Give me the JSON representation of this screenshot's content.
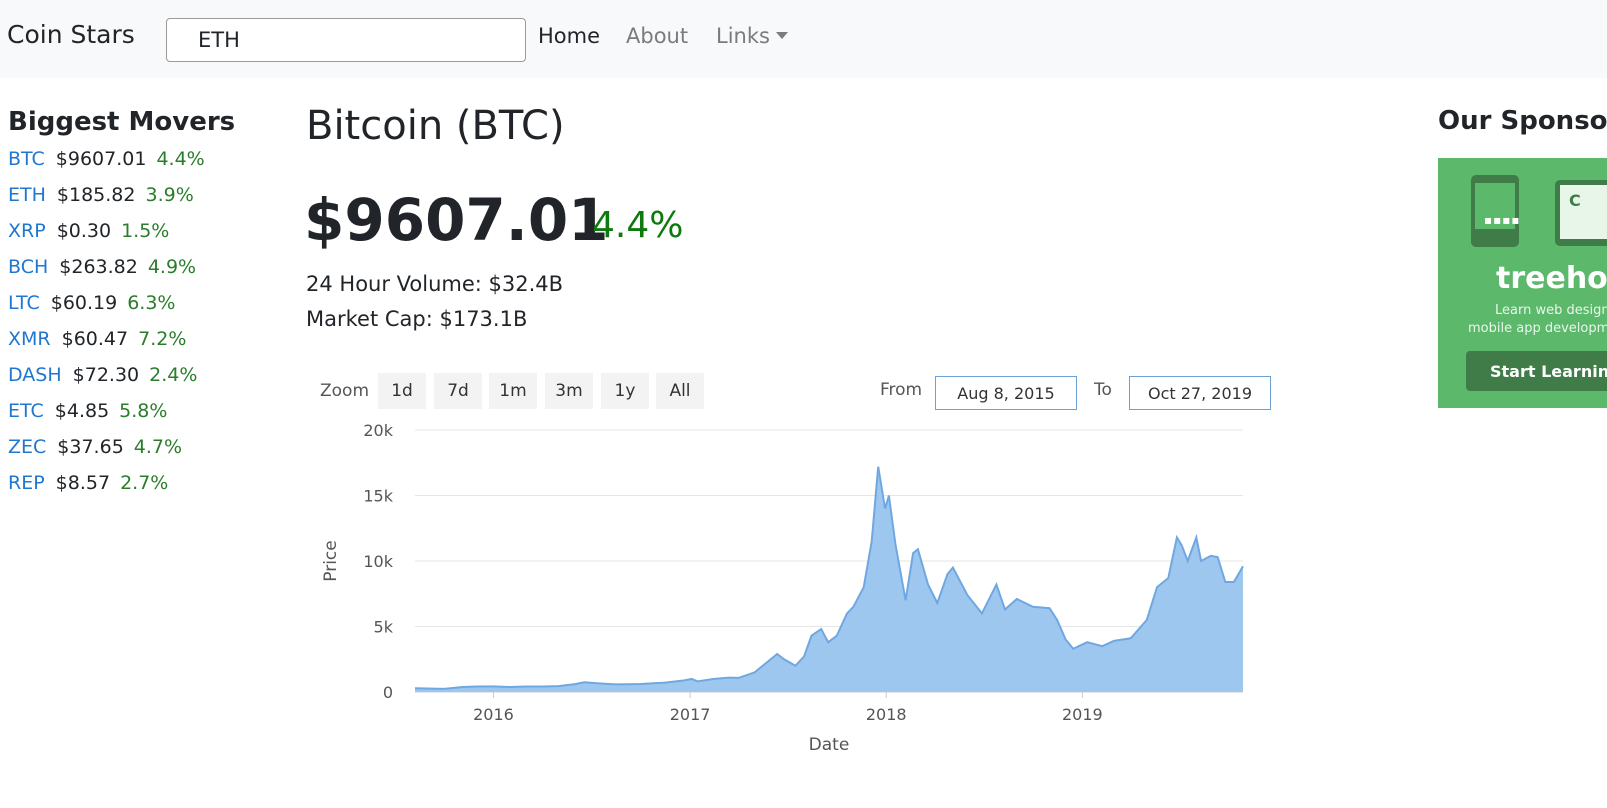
{
  "navbar": {
    "brand": "Coin Stars",
    "search_value": "ETH",
    "links": [
      "Home",
      "About",
      "Links"
    ]
  },
  "movers": {
    "title": "Biggest Movers",
    "items": [
      {
        "symbol": "BTC",
        "price": "$9607.01",
        "change": "4.4%"
      },
      {
        "symbol": "ETH",
        "price": "$185.82",
        "change": "3.9%"
      },
      {
        "symbol": "XRP",
        "price": "$0.30",
        "change": "1.5%"
      },
      {
        "symbol": "BCH",
        "price": "$263.82",
        "change": "4.9%"
      },
      {
        "symbol": "LTC",
        "price": "$60.19",
        "change": "6.3%"
      },
      {
        "symbol": "XMR",
        "price": "$60.47",
        "change": "7.2%"
      },
      {
        "symbol": "DASH",
        "price": "$72.30",
        "change": "2.4%"
      },
      {
        "symbol": "ETC",
        "price": "$4.85",
        "change": "5.8%"
      },
      {
        "symbol": "ZEC",
        "price": "$37.65",
        "change": "4.7%"
      },
      {
        "symbol": "REP",
        "price": "$8.57",
        "change": "2.7%"
      }
    ]
  },
  "coin": {
    "title": "Bitcoin (BTC)",
    "price": "$9607.01",
    "change": "4.4%",
    "volume": "24 Hour Volume: $32.4B",
    "market_cap": "Market Cap: $173.1B"
  },
  "chart_controls": {
    "zoom_label": "Zoom",
    "zoom_buttons": [
      "1d",
      "7d",
      "1m",
      "3m",
      "1y",
      "All"
    ],
    "from_label": "From",
    "from_value": "Aug 8, 2015",
    "to_label": "To",
    "to_value": "Oct 27, 2019"
  },
  "chart_data": {
    "type": "area",
    "xlabel": "Date",
    "ylabel": "Price",
    "ylim": [
      0,
      20000
    ],
    "yticks": [
      0,
      5000,
      10000,
      15000,
      20000
    ],
    "ytick_labels": [
      "0",
      "5k",
      "10k",
      "15k",
      "20k"
    ],
    "xticks": [
      "2016",
      "2017",
      "2018",
      "2019"
    ],
    "xrange": [
      "2015-08-08",
      "2019-10-27"
    ],
    "grid": true,
    "color": "#9ec7f0",
    "line_color": "#6fa8e0",
    "series": [
      {
        "x": [
          "2015-08-08",
          "2015-10-01",
          "2015-11-05",
          "2015-12-01",
          "2016-01-01",
          "2016-02-01",
          "2016-03-01",
          "2016-04-01",
          "2016-05-01",
          "2016-06-01",
          "2016-06-18",
          "2016-07-15",
          "2016-08-15",
          "2016-10-01",
          "2016-11-15",
          "2016-12-20",
          "2017-01-04",
          "2017-01-15",
          "2017-02-15",
          "2017-03-15",
          "2017-04-01",
          "2017-05-01",
          "2017-05-25",
          "2017-06-12",
          "2017-06-25",
          "2017-07-16",
          "2017-08-01",
          "2017-08-15",
          "2017-09-02",
          "2017-09-15",
          "2017-10-01",
          "2017-10-20",
          "2017-11-01",
          "2017-11-20",
          "2017-12-05",
          "2017-12-17",
          "2017-12-30",
          "2018-01-06",
          "2018-01-18",
          "2018-02-06",
          "2018-02-20",
          "2018-03-01",
          "2018-03-20",
          "2018-04-06",
          "2018-04-25",
          "2018-05-05",
          "2018-06-01",
          "2018-06-28",
          "2018-07-25",
          "2018-08-10",
          "2018-09-01",
          "2018-10-01",
          "2018-11-01",
          "2018-11-15",
          "2018-12-01",
          "2018-12-15",
          "2019-01-10",
          "2019-02-07",
          "2019-03-01",
          "2019-04-01",
          "2019-05-01",
          "2019-05-20",
          "2019-06-10",
          "2019-06-26",
          "2019-07-05",
          "2019-07-16",
          "2019-08-01",
          "2019-08-10",
          "2019-08-28",
          "2019-09-10",
          "2019-09-24",
          "2019-10-10",
          "2019-10-27"
        ],
        "y": [
          280,
          240,
          380,
          420,
          430,
          380,
          420,
          420,
          450,
          600,
          740,
          660,
          580,
          610,
          720,
          880,
          1000,
          810,
          1000,
          1100,
          1080,
          1500,
          2300,
          2900,
          2500,
          2000,
          2700,
          4300,
          4800,
          3800,
          4300,
          6000,
          6500,
          8000,
          11500,
          17200,
          14000,
          15000,
          11300,
          7000,
          10600,
          10900,
          8200,
          6800,
          9000,
          9500,
          7400,
          6000,
          8200,
          6300,
          7100,
          6500,
          6400,
          5500,
          4000,
          3300,
          3800,
          3500,
          3900,
          4100,
          5500,
          8000,
          8700,
          11800,
          11200,
          10000,
          11800,
          10000,
          10400,
          10300,
          8400,
          8400,
          9600
        ]
      }
    ]
  },
  "sponsors": {
    "title": "Our Sponsors",
    "ad_brand": "treehouse",
    "ad_line1": "Learn web design",
    "ad_line2": "mobile app development",
    "ad_cta": "Start Learning"
  }
}
